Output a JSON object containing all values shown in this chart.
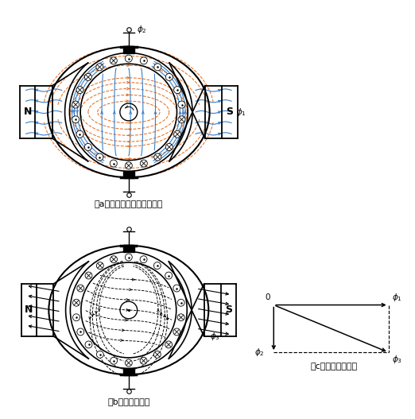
{
  "label_a": "（a）　磁極と電機子の磁束",
  "label_b": "（b）　合成磁束",
  "label_c": "（c）　ベクトル図",
  "orange_color": "#E87020",
  "blue_color": "#3A7EC8",
  "black_color": "#000000",
  "bg_color": "#ffffff"
}
